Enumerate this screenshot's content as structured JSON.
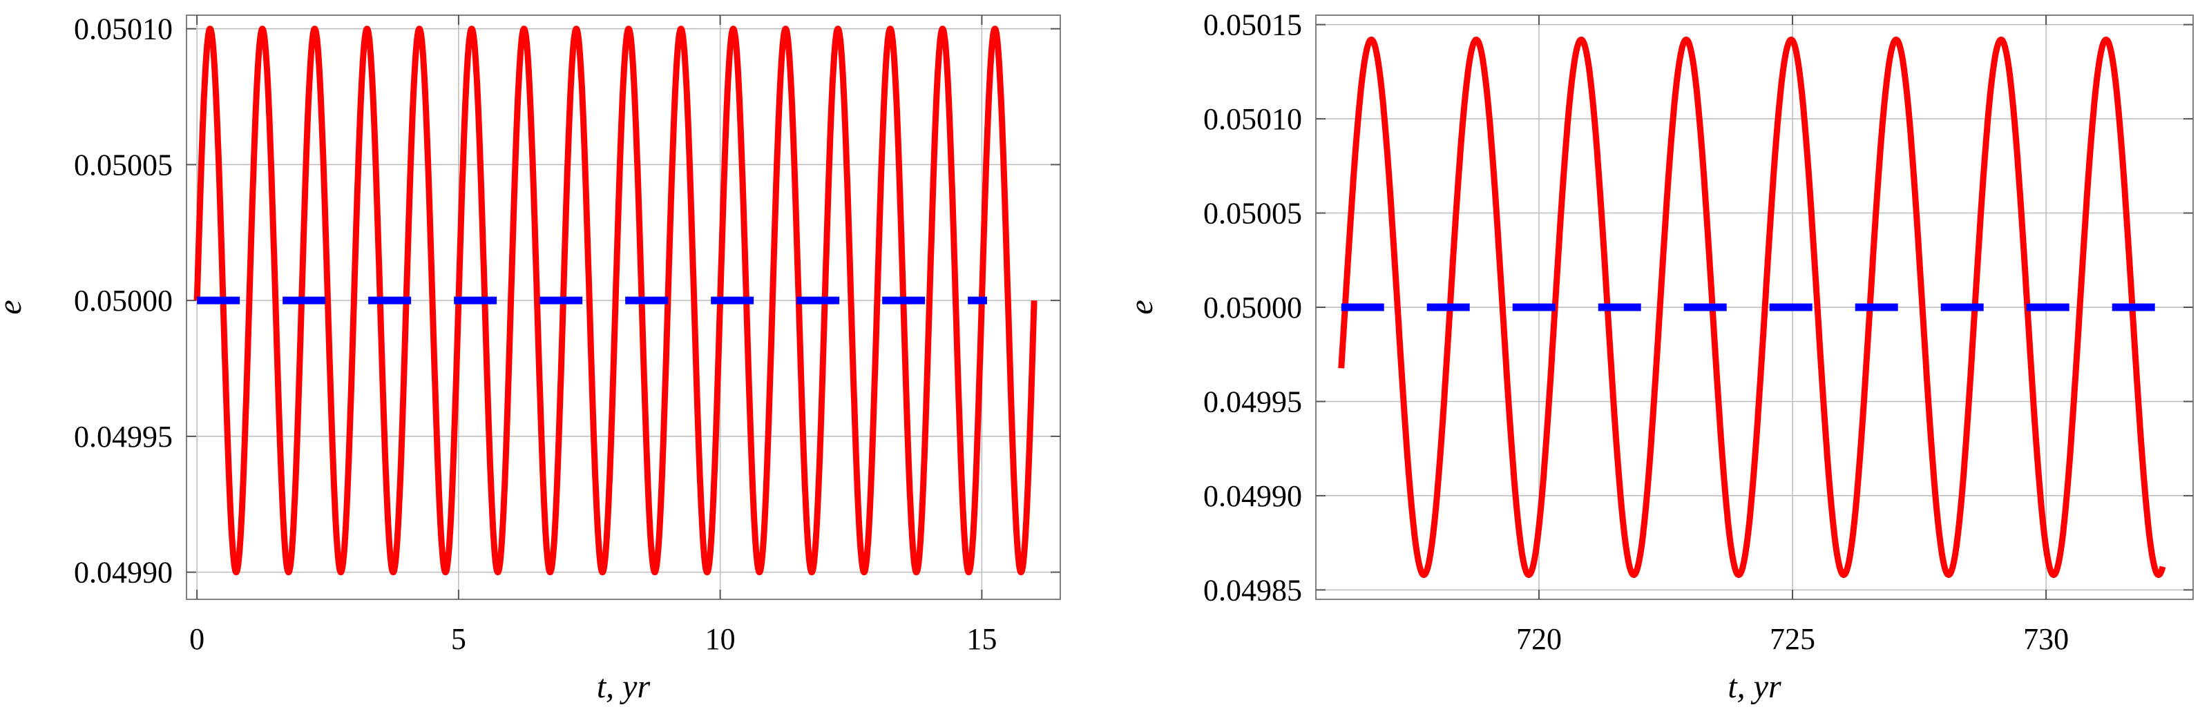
{
  "colors": {
    "series_red": "#ff0000",
    "series_blue": "#0000ff",
    "grid": "#bbbbbb",
    "frame": "#7f7f7f"
  },
  "chart_data": [
    {
      "type": "line",
      "xlabel": "t, yr",
      "ylabel": "e",
      "xlim": [
        -0.2,
        16.5
      ],
      "ylim": [
        0.04989,
        0.050105
      ],
      "xticks": [
        0,
        5,
        10,
        15
      ],
      "xtick_labels": [
        "0",
        "5",
        "10",
        "15"
      ],
      "yticks": [
        0.0499,
        0.04995,
        0.05,
        0.05005,
        0.0501
      ],
      "ytick_labels": [
        "0.04990",
        "0.04995",
        "0.05000",
        "0.05005",
        "0.05010"
      ],
      "grid": true,
      "series": [
        {
          "color": "#ff0000",
          "style": "solid",
          "x_start": 0,
          "x_end": 16,
          "center": 0.05,
          "amplitude": 0.0001,
          "period": 1.0,
          "phase": 0.0
        },
        {
          "color": "#0000ff",
          "style": "dashed",
          "x_start": 0,
          "x_end": 15.1,
          "value": 0.05
        }
      ]
    },
    {
      "type": "line",
      "xlabel": "t, yr",
      "ylabel": "e",
      "xlim": [
        715.6,
        732.9
      ],
      "ylim": [
        0.049845,
        0.050155
      ],
      "xticks": [
        720,
        725,
        730
      ],
      "xtick_labels": [
        "720",
        "725",
        "730"
      ],
      "yticks": [
        0.04985,
        0.0499,
        0.04995,
        0.05,
        0.05005,
        0.0501,
        0.05015
      ],
      "ytick_labels": [
        "0.04985",
        "0.04990",
        "0.04995",
        "0.05000",
        "0.05005",
        "0.05010",
        "0.05015"
      ],
      "grid": true,
      "series": [
        {
          "color": "#ff0000",
          "style": "solid",
          "x_start": 716.1,
          "x_end": 732.3,
          "center": 0.05,
          "amplitude": 0.000142,
          "period": 2.07,
          "phase": -0.23
        },
        {
          "color": "#0000ff",
          "style": "dashed",
          "x_start": 716.1,
          "x_end": 732.3,
          "value": 0.05
        }
      ]
    }
  ]
}
